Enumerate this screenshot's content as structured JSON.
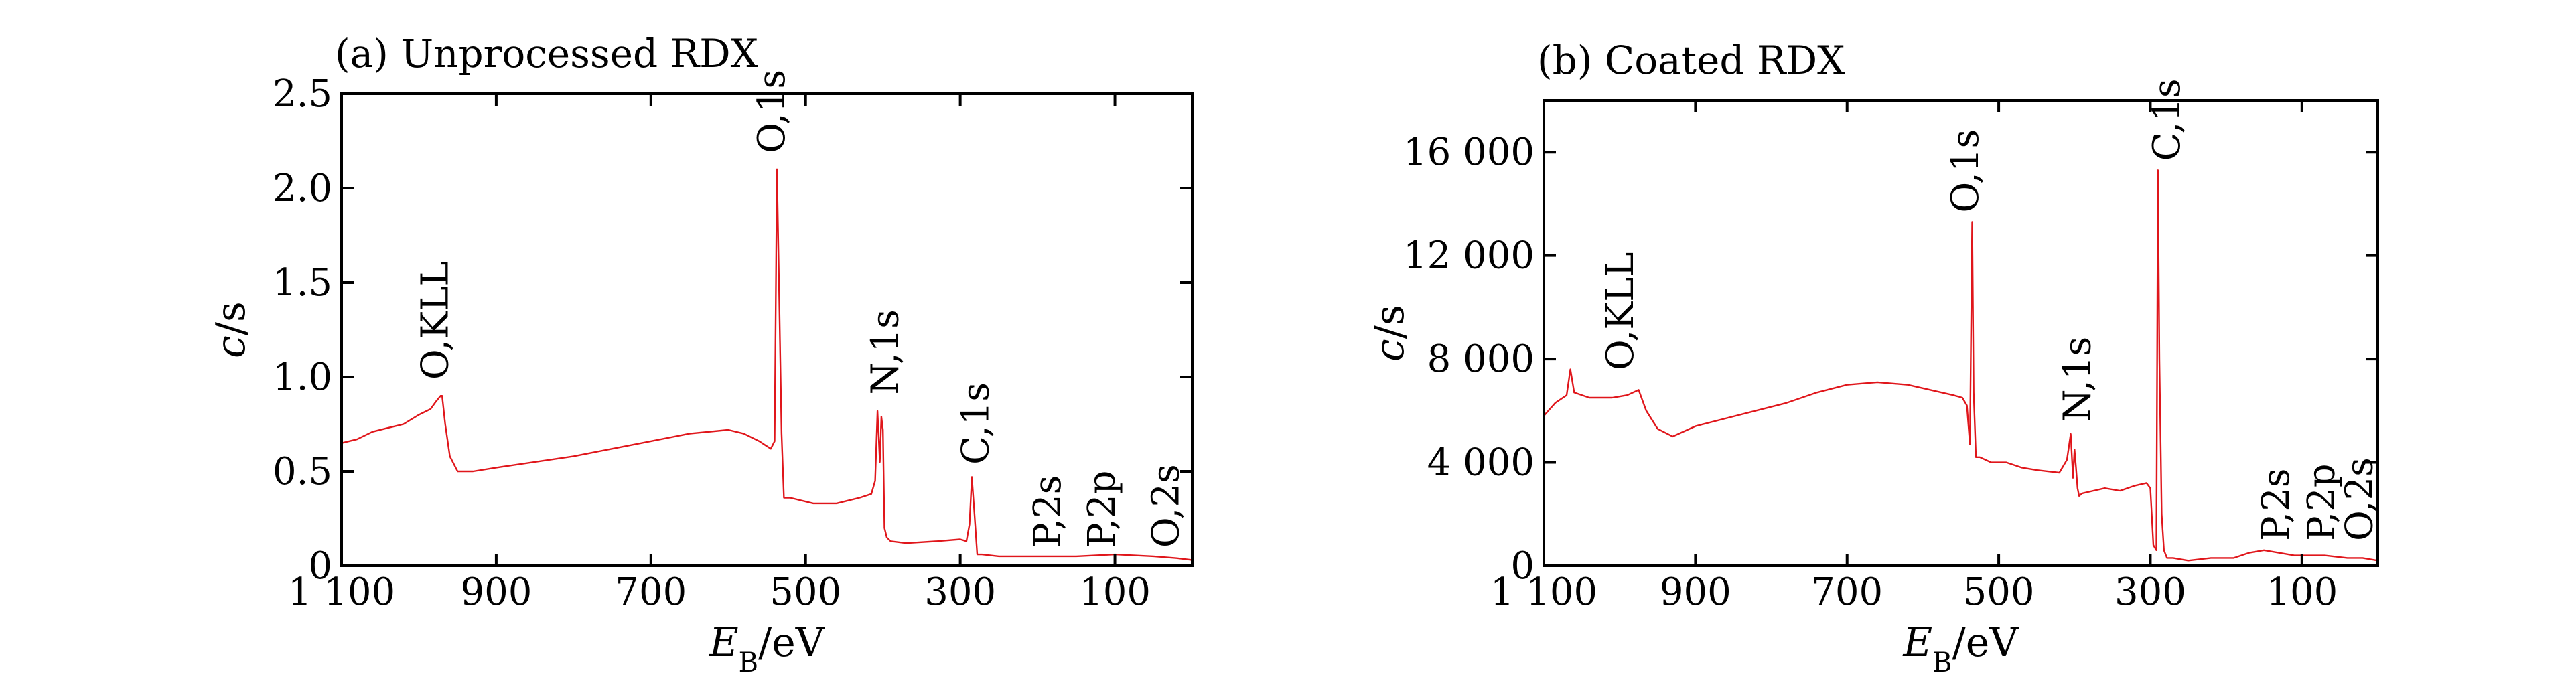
{
  "colors": {
    "spectrum": "#e0161b",
    "axis": "#000000",
    "background": "#ffffff"
  },
  "chart_data": [
    {
      "type": "line",
      "title": "(a) Unprocessed RDX",
      "xlabel_main": "E",
      "xlabel_sub": "B",
      "xlabel_unit": "/eV",
      "ylabel_main": "c",
      "ylabel_unit": "/s",
      "xlim": [
        1100,
        0
      ],
      "ylim": [
        0,
        2.5
      ],
      "x_ticks": [
        1100,
        900,
        700,
        500,
        300,
        100
      ],
      "x_tick_labels": [
        "1 100",
        "900",
        "700",
        "500",
        "300",
        "100"
      ],
      "y_ticks": [
        0,
        0.5,
        1.0,
        1.5,
        2.0,
        2.5
      ],
      "y_tick_labels": [
        "0",
        "0.5",
        "1.0",
        "1.5",
        "2.0",
        "2.5"
      ],
      "series": [
        {
          "x": [
            1100,
            1080,
            1060,
            1040,
            1020,
            1000,
            985,
            978,
            972,
            970,
            966,
            960,
            950,
            930,
            900,
            850,
            800,
            750,
            700,
            650,
            600,
            580,
            560,
            545,
            540,
            537,
            534,
            531,
            528,
            520,
            490,
            460,
            430,
            415,
            410,
            407,
            404,
            402,
            400,
            398,
            395,
            390,
            370,
            330,
            300,
            292,
            288,
            285,
            282,
            278,
            272,
            250,
            200,
            150,
            100,
            50,
            20,
            0
          ],
          "y": [
            0.65,
            0.67,
            0.71,
            0.73,
            0.75,
            0.8,
            0.83,
            0.87,
            0.9,
            0.9,
            0.75,
            0.58,
            0.5,
            0.5,
            0.52,
            0.55,
            0.58,
            0.62,
            0.66,
            0.7,
            0.72,
            0.7,
            0.66,
            0.62,
            0.66,
            2.1,
            1.4,
            0.7,
            0.36,
            0.36,
            0.33,
            0.33,
            0.36,
            0.38,
            0.45,
            0.82,
            0.55,
            0.79,
            0.72,
            0.2,
            0.15,
            0.13,
            0.12,
            0.13,
            0.14,
            0.13,
            0.22,
            0.47,
            0.3,
            0.06,
            0.06,
            0.05,
            0.05,
            0.05,
            0.06,
            0.05,
            0.04,
            0.03
          ]
        }
      ],
      "annotations": [
        {
          "text": "O,KLL",
          "x": 980,
          "y": 0.95
        },
        {
          "text": "O,1s",
          "x": 545,
          "y": 2.15
        },
        {
          "text": "N,1s",
          "x": 398,
          "y": 0.87
        },
        {
          "text": "C,1s",
          "x": 281,
          "y": 0.5
        },
        {
          "text": "P,2s",
          "x": 188,
          "y": 0.06
        },
        {
          "text": "P,2p",
          "x": 118,
          "y": 0.06
        },
        {
          "text": "O,2s",
          "x": 35,
          "y": 0.06
        }
      ]
    },
    {
      "type": "line",
      "title": "(b) Coated RDX",
      "xlabel_main": "E",
      "xlabel_sub": "B",
      "xlabel_unit": "/eV",
      "ylabel_main": "c",
      "ylabel_unit": "/s",
      "xlim": [
        1100,
        0
      ],
      "ylim": [
        0,
        18000
      ],
      "x_ticks": [
        1100,
        900,
        700,
        500,
        300,
        100
      ],
      "x_tick_labels": [
        "1 100",
        "900",
        "700",
        "500",
        "300",
        "100"
      ],
      "y_ticks": [
        0,
        4000,
        8000,
        12000,
        16000
      ],
      "y_tick_labels": [
        "0",
        "4 000",
        "8 000",
        "12 000",
        "16 000"
      ],
      "series": [
        {
          "x": [
            1100,
            1085,
            1070,
            1065,
            1060,
            1040,
            1010,
            990,
            975,
            965,
            950,
            930,
            900,
            860,
            820,
            780,
            740,
            700,
            660,
            620,
            590,
            560,
            548,
            542,
            538,
            535,
            533,
            530,
            525,
            510,
            490,
            470,
            450,
            420,
            410,
            405,
            402,
            400,
            398,
            396,
            394,
            390,
            375,
            360,
            340,
            320,
            305,
            300,
            296,
            292,
            290,
            288,
            285,
            282,
            278,
            270,
            250,
            220,
            190,
            170,
            150,
            130,
            110,
            90,
            70,
            40,
            20,
            0
          ],
          "y": [
            5800,
            6300,
            6600,
            7600,
            6700,
            6500,
            6500,
            6600,
            6800,
            6000,
            5300,
            5000,
            5400,
            5700,
            6000,
            6300,
            6700,
            7000,
            7100,
            7000,
            6800,
            6600,
            6500,
            6200,
            4700,
            13300,
            6700,
            4200,
            4200,
            4000,
            4000,
            3800,
            3700,
            3600,
            4100,
            5100,
            3400,
            4500,
            3800,
            3000,
            2700,
            2800,
            2900,
            3000,
            2900,
            3100,
            3200,
            3000,
            800,
            600,
            15300,
            8000,
            2000,
            600,
            300,
            300,
            200,
            300,
            300,
            500,
            600,
            500,
            400,
            400,
            400,
            300,
            300,
            200
          ]
        }
      ],
      "annotations": [
        {
          "text": "O,KLL",
          "x": 1000,
          "y": 7300
        },
        {
          "text": "O,1s",
          "x": 545,
          "y": 13400
        },
        {
          "text": "N,1s",
          "x": 397,
          "y": 5300
        },
        {
          "text": "C,1s",
          "x": 279,
          "y": 15400
        },
        {
          "text": "P,2s",
          "x": 135,
          "y": 700
        },
        {
          "text": "P,2p",
          "x": 75,
          "y": 700
        },
        {
          "text": "O,2s",
          "x": 25,
          "y": 700
        }
      ]
    }
  ]
}
